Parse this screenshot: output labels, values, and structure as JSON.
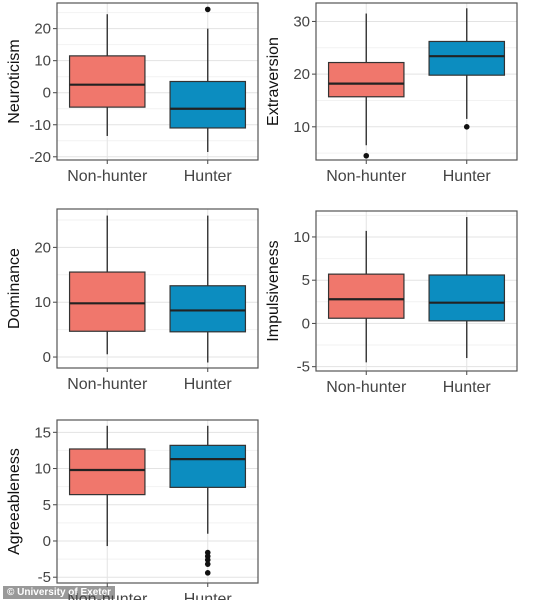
{
  "credit": "© University of Exeter",
  "colors": {
    "non_hunter": "#F0776C",
    "hunter": "#0C8DC0",
    "median": "#222222",
    "panel_border": "#555555",
    "grid_major": "#E3E3E3",
    "grid_minor": "#F2F2F2",
    "axis_text": "#444444"
  },
  "chart_data": [
    {
      "type": "box",
      "ylabel": "Neuroticism",
      "categories": [
        "Non-hunter",
        "Hunter"
      ],
      "ylim": [
        -21,
        28
      ],
      "yticks": [
        -20,
        -10,
        0,
        10,
        20
      ],
      "grid": true,
      "boxes": [
        {
          "category": "Non-hunter",
          "min": -13.5,
          "q1": -4.5,
          "median": 2.5,
          "q3": 11.5,
          "max": 24.5,
          "outliers": []
        },
        {
          "category": "Hunter",
          "min": -18.5,
          "q1": -11,
          "median": -5,
          "q3": 3.5,
          "max": 20,
          "outliers": [
            26
          ]
        }
      ]
    },
    {
      "type": "box",
      "ylabel": "Extraversion",
      "categories": [
        "Non-hunter",
        "Hunter"
      ],
      "ylim": [
        3.7,
        33.5
      ],
      "yticks": [
        10,
        20,
        30
      ],
      "grid": true,
      "boxes": [
        {
          "category": "Non-hunter",
          "min": 6.5,
          "q1": 15.7,
          "median": 18.2,
          "q3": 22.2,
          "max": 31.5,
          "outliers": [
            4.5
          ]
        },
        {
          "category": "Hunter",
          "min": 11.5,
          "q1": 19.8,
          "median": 23.4,
          "q3": 26.2,
          "max": 32.5,
          "outliers": [
            10
          ]
        }
      ]
    },
    {
      "type": "box",
      "ylabel": "Dominance",
      "categories": [
        "Non-hunter",
        "Hunter"
      ],
      "ylim": [
        -2,
        27
      ],
      "yticks": [
        0,
        10,
        20
      ],
      "grid": true,
      "boxes": [
        {
          "category": "Non-hunter",
          "min": 0.5,
          "q1": 4.7,
          "median": 9.8,
          "q3": 15.5,
          "max": 25.8,
          "outliers": []
        },
        {
          "category": "Hunter",
          "min": -1,
          "q1": 4.6,
          "median": 8.5,
          "q3": 13,
          "max": 25.8,
          "outliers": []
        }
      ]
    },
    {
      "type": "box",
      "ylabel": "Impulsiveness",
      "categories": [
        "Non-hunter",
        "Hunter"
      ],
      "ylim": [
        -5.5,
        13
      ],
      "yticks": [
        -5,
        0,
        5,
        10
      ],
      "grid": true,
      "boxes": [
        {
          "category": "Non-hunter",
          "min": -4.5,
          "q1": 0.6,
          "median": 2.8,
          "q3": 5.7,
          "max": 10.7,
          "outliers": []
        },
        {
          "category": "Hunter",
          "min": -4,
          "q1": 0.3,
          "median": 2.4,
          "q3": 5.6,
          "max": 12.3,
          "outliers": []
        }
      ]
    },
    {
      "type": "box",
      "ylabel": "Agreeableness",
      "categories": [
        "Non-hunter",
        "Hunter"
      ],
      "ylim": [
        -5.8,
        16.7
      ],
      "yticks": [
        -5,
        0,
        5,
        10,
        15
      ],
      "grid": true,
      "boxes": [
        {
          "category": "Non-hunter",
          "min": -0.7,
          "q1": 6.4,
          "median": 9.8,
          "q3": 12.7,
          "max": 15.9,
          "outliers": []
        },
        {
          "category": "Hunter",
          "min": 1,
          "q1": 7.4,
          "median": 11.3,
          "q3": 13.2,
          "max": 15.9,
          "outliers": [
            -1.6,
            -2.1,
            -2.6,
            -3.2,
            -4.4
          ]
        }
      ]
    }
  ]
}
